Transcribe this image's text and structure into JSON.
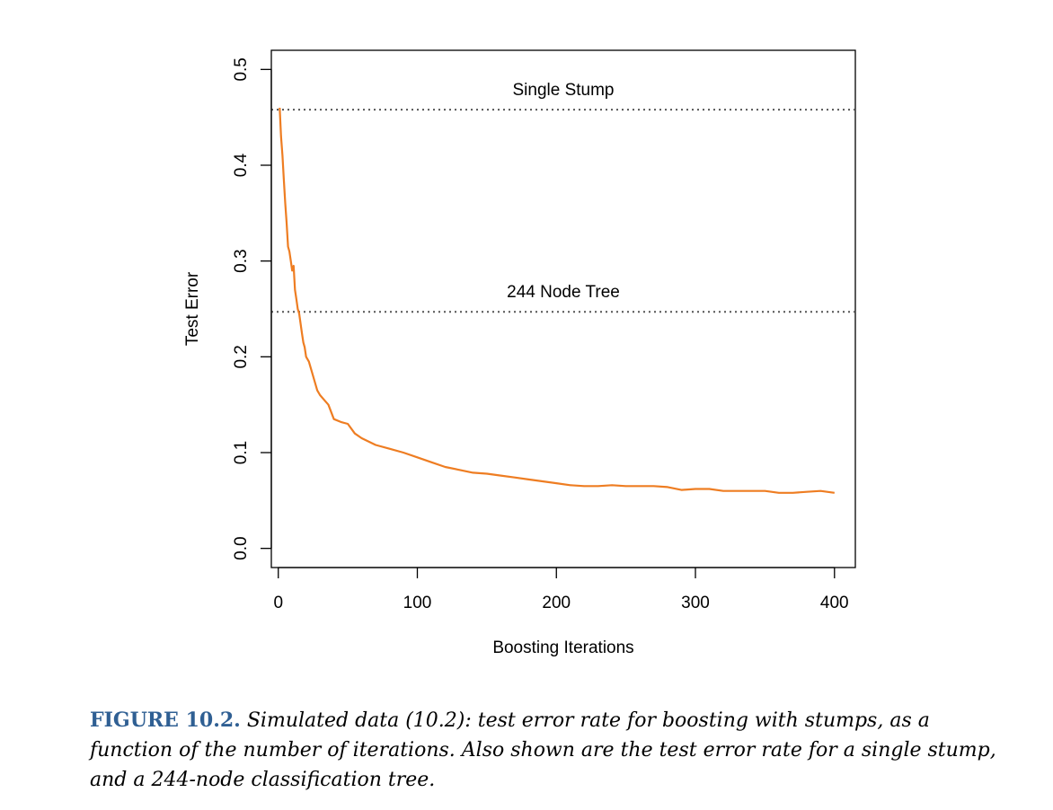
{
  "chart_data": {
    "type": "line",
    "xlabel": "Boosting Iterations",
    "ylabel": "Test Error",
    "xlim": [
      -5,
      415
    ],
    "ylim": [
      -0.02,
      0.52
    ],
    "xticks": [
      0,
      100,
      200,
      300,
      400
    ],
    "yticks": [
      0.0,
      0.1,
      0.2,
      0.3,
      0.4,
      0.5
    ],
    "xtick_labels": [
      "0",
      "100",
      "200",
      "300",
      "400"
    ],
    "ytick_labels": [
      "0.0",
      "0.1",
      "0.2",
      "0.3",
      "0.4",
      "0.5"
    ],
    "grid": false,
    "line_color": "#ee7d22",
    "reference_color": "#555555",
    "series": [
      {
        "x": [
          1,
          2,
          3,
          4,
          5,
          6,
          7,
          8,
          9,
          10,
          11,
          12,
          13,
          14,
          15,
          16,
          17,
          18,
          19,
          20,
          22,
          24,
          26,
          28,
          30,
          33,
          36,
          40,
          45,
          50,
          55,
          60,
          70,
          80,
          90,
          100,
          110,
          120,
          130,
          140,
          150,
          160,
          170,
          180,
          190,
          200,
          210,
          220,
          230,
          240,
          250,
          260,
          270,
          280,
          290,
          300,
          310,
          320,
          330,
          340,
          350,
          360,
          370,
          380,
          390,
          400
        ],
        "y": [
          0.46,
          0.43,
          0.41,
          0.385,
          0.36,
          0.34,
          0.315,
          0.31,
          0.3,
          0.29,
          0.295,
          0.27,
          0.26,
          0.25,
          0.245,
          0.235,
          0.225,
          0.215,
          0.21,
          0.2,
          0.195,
          0.185,
          0.175,
          0.165,
          0.16,
          0.155,
          0.15,
          0.135,
          0.132,
          0.13,
          0.12,
          0.115,
          0.108,
          0.104,
          0.1,
          0.095,
          0.09,
          0.085,
          0.082,
          0.079,
          0.078,
          0.076,
          0.074,
          0.072,
          0.07,
          0.068,
          0.066,
          0.065,
          0.065,
          0.066,
          0.065,
          0.065,
          0.065,
          0.064,
          0.061,
          0.062,
          0.062,
          0.06,
          0.06,
          0.06,
          0.06,
          0.058,
          0.058,
          0.059,
          0.06,
          0.058
        ]
      }
    ],
    "reference_lines": [
      {
        "label": "Single Stump",
        "y": 0.458
      },
      {
        "label": "244 Node Tree",
        "y": 0.247
      }
    ]
  },
  "caption": {
    "label": "FIGURE 10.2.",
    "text": "Simulated data (10.2): test error rate for boosting with stumps, as a function of the number of iterations. Also shown are the test error rate for a single stump, and a 244-node classification tree."
  }
}
